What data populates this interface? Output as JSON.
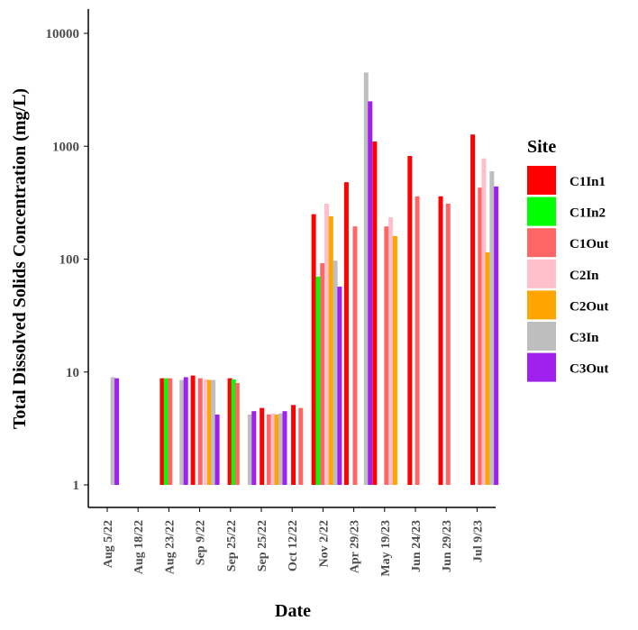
{
  "chart_data": {
    "type": "bar",
    "scale": "log",
    "ylabel": "Total Dissolved Solids Concentration (mg/L)",
    "xlabel": "Date",
    "ylim": [
      1,
      10000
    ],
    "yticks": [
      1,
      10,
      100,
      1000,
      10000
    ],
    "ytick_labels": [
      "1",
      "10",
      "100",
      "1000",
      "10000"
    ],
    "grid": false,
    "legend_position": "right",
    "legend_title": "Site",
    "x_tick_labels": [
      "Aug 5/22",
      "Aug 18/22",
      "Aug 23/22",
      "Sep 9/22",
      "Sep 25/22",
      "Sep 25/22",
      "Oct 12/22",
      "Nov 2/22",
      "Apr 29/23",
      "May 19/23",
      "Jun 24/23",
      "Jun 29/23",
      "Jul 9/23"
    ],
    "series": [
      {
        "name": "C1In1",
        "color": "#ff0000"
      },
      {
        "name": "C1In2",
        "color": "#00ff00"
      },
      {
        "name": "C1Out",
        "color": "#ff6666"
      },
      {
        "name": "C2In",
        "color": "#ffc0cb"
      },
      {
        "name": "C2Out",
        "color": "#ffa500"
      },
      {
        "name": "C3In",
        "color": "#bebebe"
      },
      {
        "name": "C3Out",
        "color": "#a020f0"
      }
    ],
    "bars": [
      {
        "x": 0.18,
        "series": "C3In",
        "value": 9
      },
      {
        "x": 0.31,
        "series": "C3Out",
        "value": 8.8
      },
      {
        "x": 1.78,
        "series": "C1In1",
        "value": 8.8
      },
      {
        "x": 1.91,
        "series": "C1In2",
        "value": 8.8
      },
      {
        "x": 2.04,
        "series": "C1Out",
        "value": 8.8
      },
      {
        "x": 2.42,
        "series": "C3In",
        "value": 8.5
      },
      {
        "x": 2.55,
        "series": "C3Out",
        "value": 9
      },
      {
        "x": 2.78,
        "series": "C1In1",
        "value": 9.3
      },
      {
        "x": 3.02,
        "series": "C1Out",
        "value": 8.8
      },
      {
        "x": 3.2,
        "series": "C2In",
        "value": 8.6
      },
      {
        "x": 3.32,
        "series": "C2Out",
        "value": 8.5
      },
      {
        "x": 3.44,
        "series": "C3In",
        "value": 8.5
      },
      {
        "x": 3.57,
        "series": "C3Out",
        "value": 4.2
      },
      {
        "x": 3.98,
        "series": "C1In1",
        "value": 8.8
      },
      {
        "x": 4.1,
        "series": "C1In2",
        "value": 8.6
      },
      {
        "x": 4.22,
        "series": "C1Out",
        "value": 8
      },
      {
        "x": 4.63,
        "series": "C3In",
        "value": 4.2
      },
      {
        "x": 4.76,
        "series": "C3Out",
        "value": 4.5
      },
      {
        "x": 5.02,
        "series": "C1In1",
        "value": 4.8
      },
      {
        "x": 5.25,
        "series": "C1Out",
        "value": 4.2
      },
      {
        "x": 5.38,
        "series": "C2In",
        "value": 4.3
      },
      {
        "x": 5.5,
        "series": "C2Out",
        "value": 4.2
      },
      {
        "x": 5.63,
        "series": "C3In",
        "value": 4.3
      },
      {
        "x": 5.76,
        "series": "C3Out",
        "value": 4.5
      },
      {
        "x": 6.04,
        "series": "C1In1",
        "value": 5.1
      },
      {
        "x": 6.28,
        "series": "C1Out",
        "value": 4.8
      },
      {
        "x": 6.7,
        "series": "C1In1",
        "value": 250
      },
      {
        "x": 6.84,
        "series": "C1In2",
        "value": 70
      },
      {
        "x": 6.98,
        "series": "C1Out",
        "value": 92
      },
      {
        "x": 7.12,
        "series": "C2In",
        "value": 310
      },
      {
        "x": 7.26,
        "series": "C2Out",
        "value": 240
      },
      {
        "x": 7.4,
        "series": "C3In",
        "value": 97
      },
      {
        "x": 7.54,
        "series": "C3Out",
        "value": 57
      },
      {
        "x": 7.76,
        "series": "C1In1",
        "value": 480
      },
      {
        "x": 8.04,
        "series": "C1Out",
        "value": 195
      },
      {
        "x": 8.4,
        "series": "C3In",
        "value": 4500
      },
      {
        "x": 8.53,
        "series": "C3Out",
        "value": 2500
      },
      {
        "x": 8.68,
        "series": "C1In1",
        "value": 1100
      },
      {
        "x": 9.06,
        "series": "C1Out",
        "value": 195
      },
      {
        "x": 9.2,
        "series": "C2In",
        "value": 235
      },
      {
        "x": 9.34,
        "series": "C2Out",
        "value": 160
      },
      {
        "x": 9.82,
        "series": "C1In1",
        "value": 820
      },
      {
        "x": 10.06,
        "series": "C1Out",
        "value": 360
      },
      {
        "x": 10.82,
        "series": "C1In1",
        "value": 360
      },
      {
        "x": 11.06,
        "series": "C1Out",
        "value": 310
      },
      {
        "x": 11.86,
        "series": "C1In1",
        "value": 1270
      },
      {
        "x": 12.1,
        "series": "C1Out",
        "value": 430
      },
      {
        "x": 12.22,
        "series": "C2In",
        "value": 780
      },
      {
        "x": 12.34,
        "series": "C2Out",
        "value": 115
      },
      {
        "x": 12.48,
        "series": "C3In",
        "value": 600
      },
      {
        "x": 12.62,
        "series": "C3Out",
        "value": 440
      }
    ]
  }
}
